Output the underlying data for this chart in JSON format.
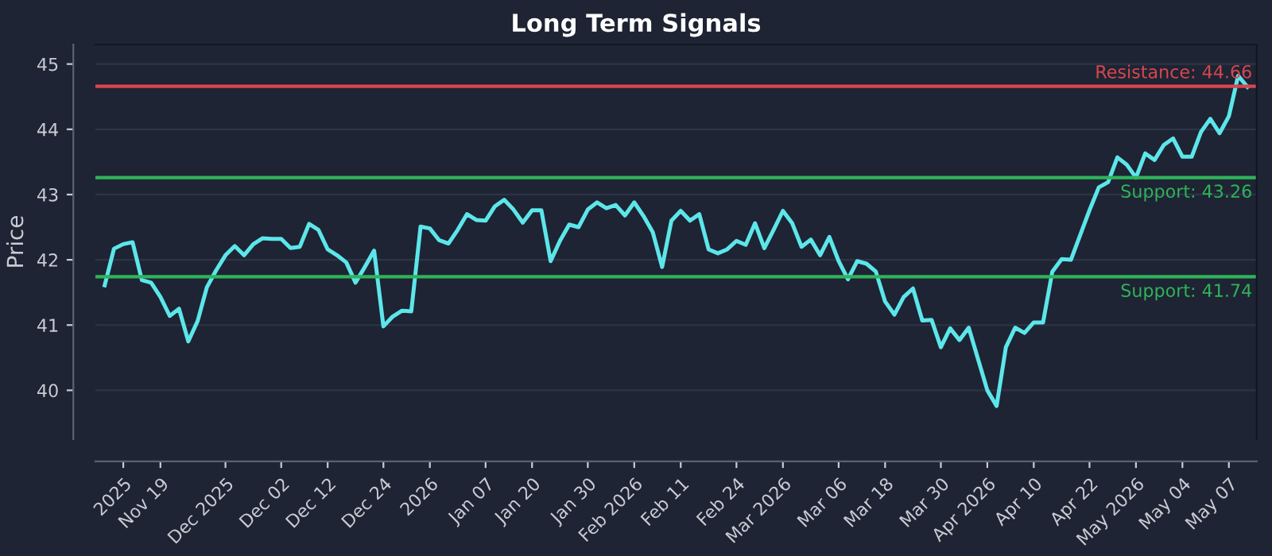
{
  "chart_data": {
    "type": "line",
    "title": "Long Term Signals",
    "ylabel": "Price",
    "categories": [
      null,
      null,
      "2025",
      null,
      null,
      null,
      "Nov 19",
      null,
      null,
      null,
      null,
      null,
      null,
      "Dec 2025",
      null,
      null,
      null,
      null,
      null,
      "Dec 02",
      null,
      null,
      null,
      null,
      "Dec 12",
      null,
      null,
      null,
      null,
      null,
      "Dec 24",
      null,
      null,
      null,
      null,
      "2026",
      null,
      null,
      null,
      null,
      null,
      "Jan 07",
      null,
      null,
      null,
      null,
      "Jan 20",
      null,
      null,
      null,
      null,
      null,
      "Jan 30",
      null,
      null,
      null,
      null,
      "Feb 2026",
      null,
      null,
      null,
      null,
      "Feb 11",
      null,
      null,
      null,
      null,
      null,
      "Feb 24",
      null,
      null,
      null,
      null,
      "Mar 2026",
      null,
      null,
      null,
      null,
      null,
      "Mar 06",
      null,
      null,
      null,
      null,
      "Mar 18",
      null,
      null,
      null,
      null,
      null,
      "Mar 30",
      null,
      null,
      null,
      null,
      "Apr 2026",
      null,
      null,
      null,
      null,
      "Apr 10",
      null,
      null,
      null,
      null,
      null,
      "Apr 22",
      null,
      null,
      null,
      null,
      "May 2026",
      null,
      null,
      null,
      null,
      "May 04",
      null,
      null,
      null,
      null,
      "May 07",
      null,
      null
    ],
    "series": [
      {
        "color": "#5ce6ea",
        "values": [
          41.61,
          42.17,
          42.24,
          42.27,
          41.69,
          41.65,
          41.43,
          41.14,
          41.25,
          40.75,
          41.06,
          41.58,
          41.84,
          42.07,
          42.21,
          42.07,
          42.24,
          42.33,
          42.32,
          42.32,
          42.18,
          42.2,
          42.55,
          42.46,
          42.16,
          42.07,
          41.96,
          41.65,
          41.89,
          42.14,
          40.98,
          41.13,
          41.22,
          41.21,
          42.51,
          42.48,
          42.3,
          42.25,
          42.46,
          42.7,
          42.61,
          42.6,
          42.82,
          42.92,
          42.77,
          42.57,
          42.76,
          42.76,
          41.98,
          42.29,
          42.54,
          42.5,
          42.77,
          42.88,
          42.79,
          42.84,
          42.68,
          42.88,
          42.67,
          42.42,
          41.89,
          42.6,
          42.75,
          42.6,
          42.7,
          42.16,
          42.1,
          42.16,
          42.29,
          42.23,
          42.56,
          42.18,
          42.46,
          42.75,
          42.56,
          42.2,
          42.31,
          42.07,
          42.35,
          41.98,
          41.7,
          41.98,
          41.94,
          41.82,
          41.36,
          41.16,
          41.43,
          41.56,
          41.07,
          41.08,
          40.66,
          40.95,
          40.77,
          40.96,
          40.48,
          40.0,
          39.76,
          40.66,
          40.96,
          40.88,
          41.04,
          41.04,
          41.82,
          42.01,
          42.0,
          42.38,
          42.76,
          43.11,
          43.19,
          43.57,
          43.46,
          43.26,
          43.63,
          43.53,
          43.76,
          43.86,
          43.58,
          43.58,
          43.96,
          44.16,
          43.94,
          44.2,
          44.82,
          44.65
        ]
      }
    ],
    "ylim": [
      39.25,
      45.3
    ],
    "yticks": [
      40,
      41,
      42,
      43,
      44,
      45
    ],
    "grid": "y",
    "ref_lines": [
      {
        "axis": "y",
        "value": 44.66,
        "label": "Resistance: 44.66",
        "color": "#d9464f"
      },
      {
        "axis": "y",
        "value": 43.26,
        "label": "Support: 43.26",
        "color": "#2fb35a"
      },
      {
        "axis": "y",
        "value": 41.74,
        "label": "Support: 41.74",
        "color": "#2fb35a"
      }
    ]
  }
}
